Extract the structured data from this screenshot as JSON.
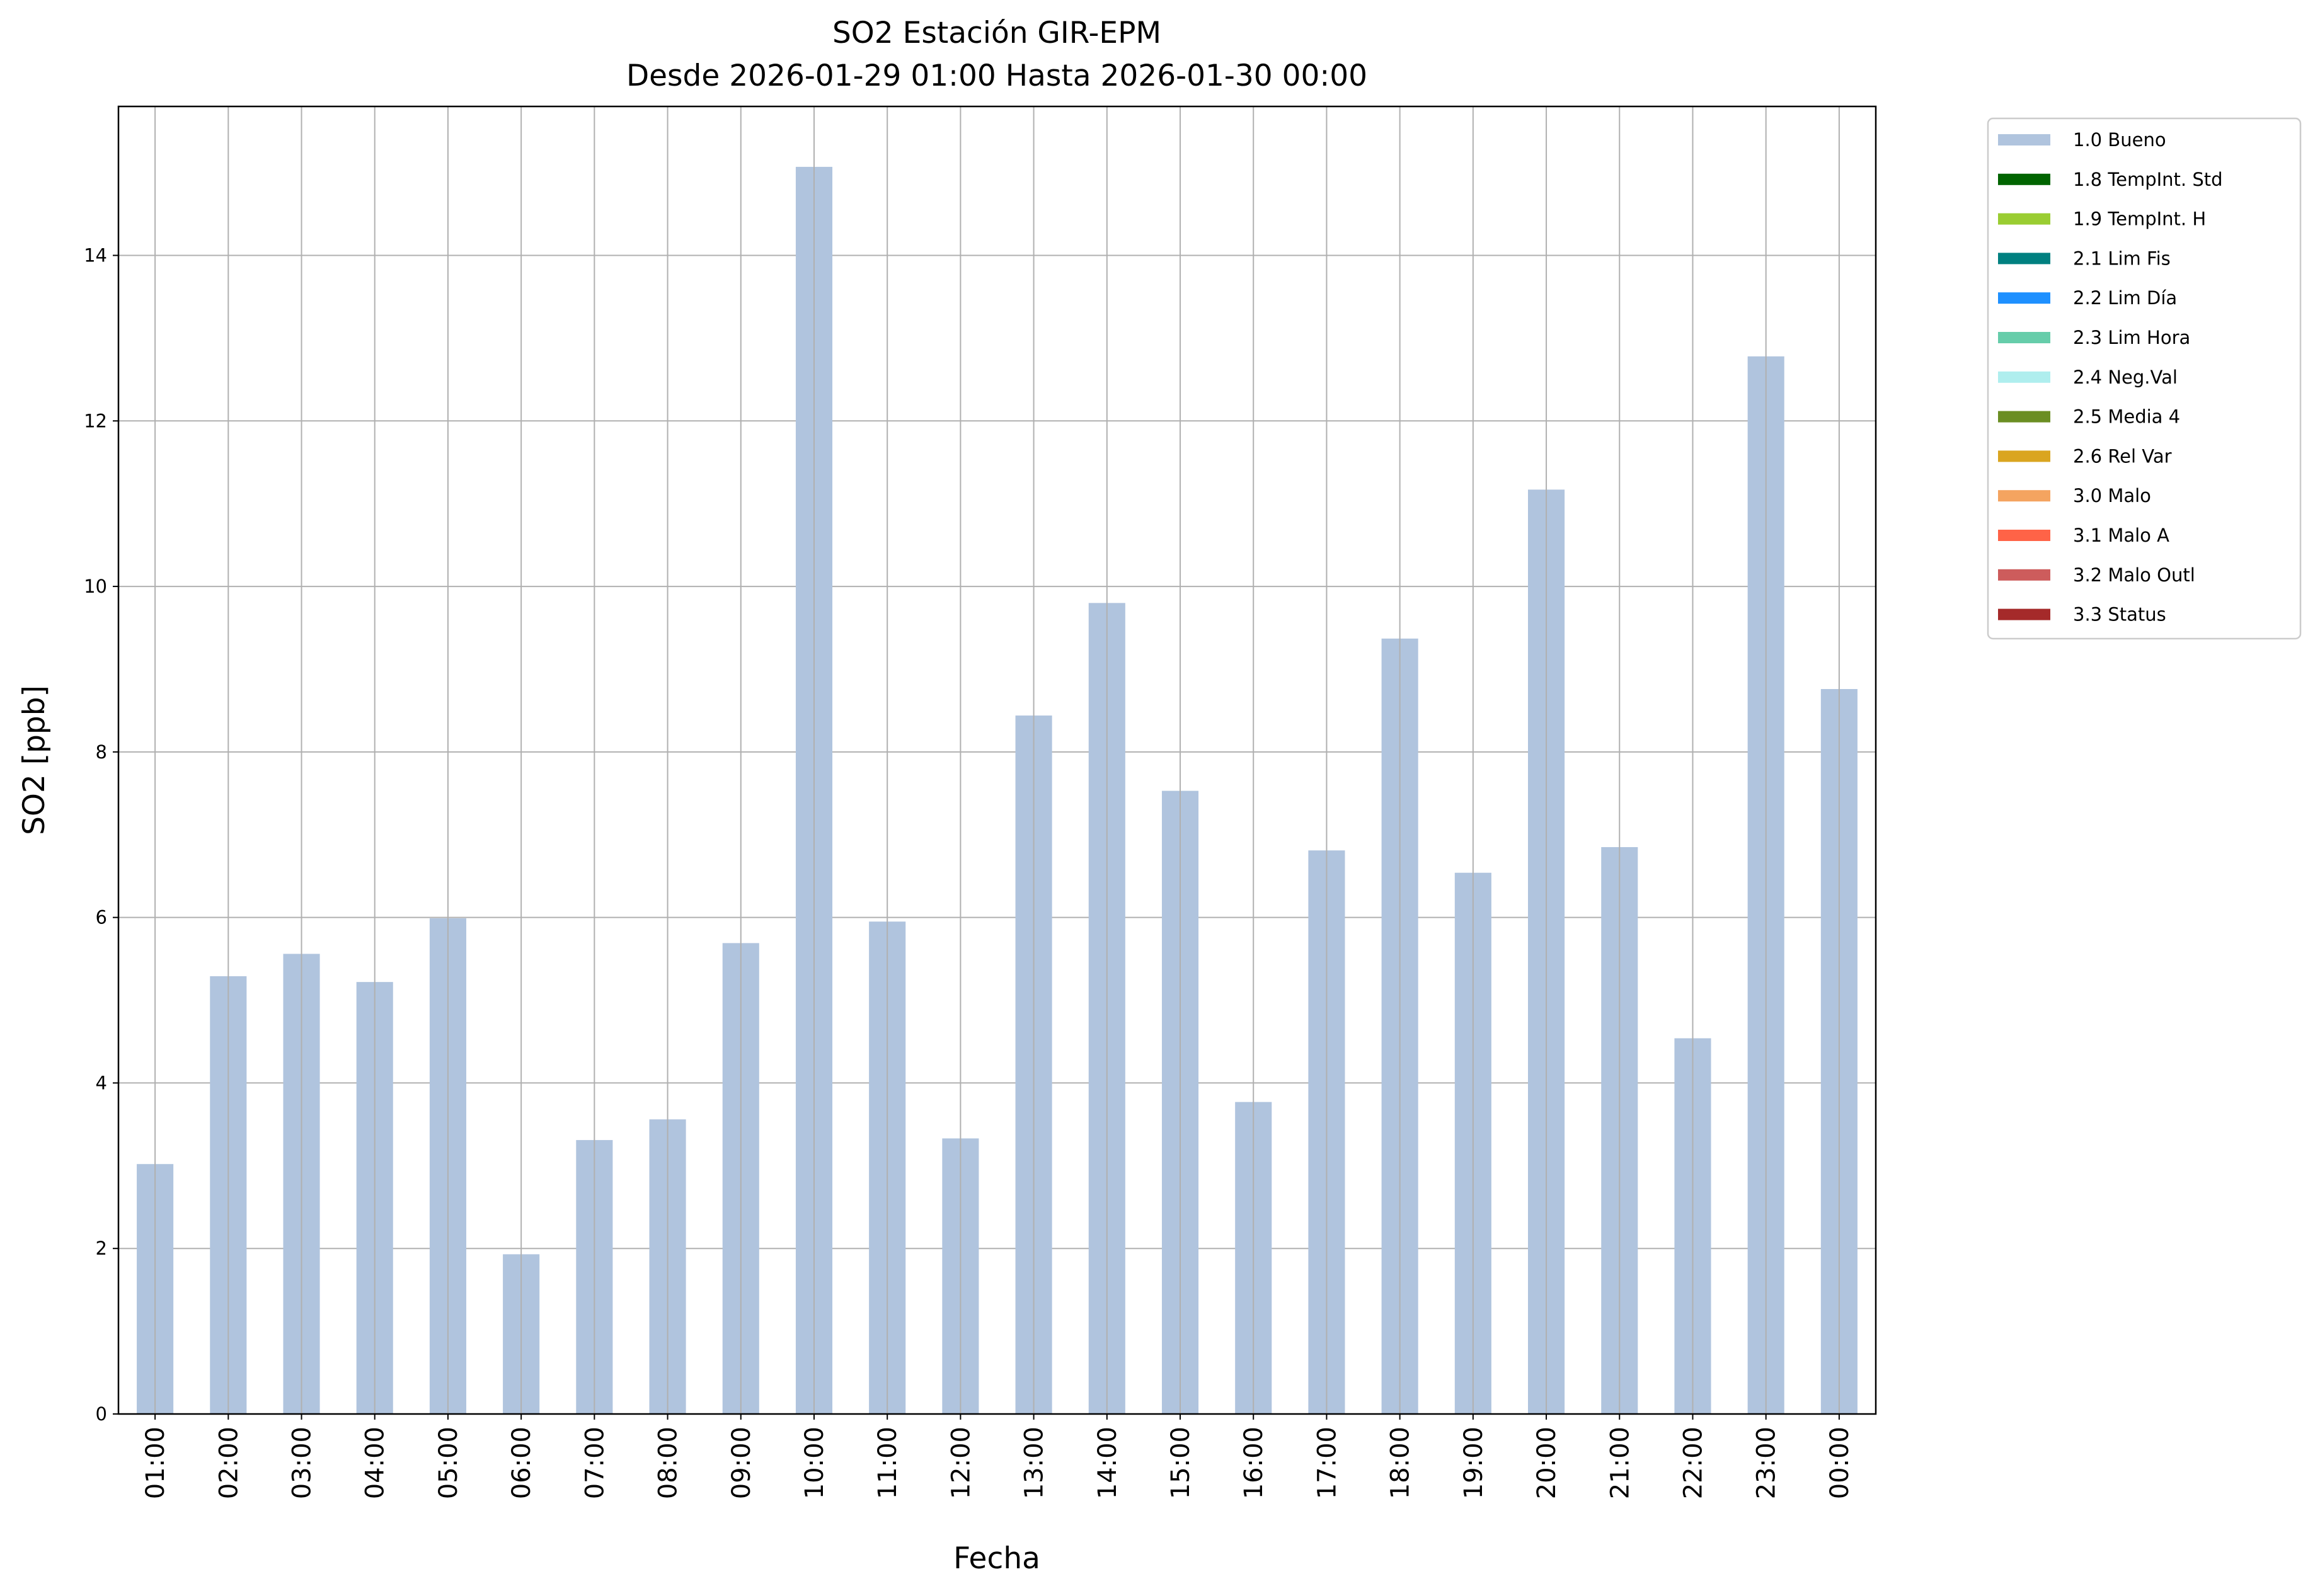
{
  "chart_data": {
    "type": "bar",
    "title": "SO2 Estación GIR-EPM",
    "subtitle": "Desde 2026-01-29 01:00 Hasta 2026-01-30 00:00",
    "xlabel": "Fecha",
    "ylabel": "SO2 [ppb]",
    "ylim": [
      0,
      15.8
    ],
    "yticks": [
      0,
      2,
      4,
      6,
      8,
      10,
      12,
      14
    ],
    "grid": true,
    "legend_placement": "outside-top-right",
    "categories": [
      "01:00",
      "02:00",
      "03:00",
      "04:00",
      "05:00",
      "06:00",
      "07:00",
      "08:00",
      "09:00",
      "10:00",
      "11:00",
      "12:00",
      "13:00",
      "14:00",
      "15:00",
      "16:00",
      "17:00",
      "18:00",
      "19:00",
      "20:00",
      "21:00",
      "22:00",
      "23:00",
      "00:00"
    ],
    "series": [
      {
        "name": "1.0 Bueno",
        "color": "#b0c4de",
        "values": [
          3.02,
          5.29,
          5.56,
          5.22,
          5.99,
          1.93,
          3.31,
          3.56,
          5.69,
          15.07,
          5.95,
          3.33,
          8.44,
          9.8,
          7.53,
          3.77,
          6.81,
          9.37,
          6.54,
          11.17,
          6.85,
          4.54,
          12.78,
          8.76
        ]
      }
    ],
    "legend": [
      {
        "label": "1.0 Bueno",
        "color": "#b0c4de"
      },
      {
        "label": "1.8 TempInt. Std",
        "color": "#006400"
      },
      {
        "label": "1.9 TempInt. H",
        "color": "#9acd32"
      },
      {
        "label": "2.1 Lim Fis",
        "color": "#008080"
      },
      {
        "label": "2.2 Lim Día",
        "color": "#1e90ff"
      },
      {
        "label": "2.3 Lim Hora",
        "color": "#66cdaa"
      },
      {
        "label": "2.4 Neg.Val",
        "color": "#afeeee"
      },
      {
        "label": "2.5 Media 4",
        "color": "#6b8e23"
      },
      {
        "label": "2.6 Rel Var",
        "color": "#daa520"
      },
      {
        "label": "3.0 Malo",
        "color": "#f4a460"
      },
      {
        "label": "3.1 Malo A",
        "color": "#ff6347"
      },
      {
        "label": "3.2 Malo Outl",
        "color": "#cd5c5c"
      },
      {
        "label": "3.3 Status",
        "color": "#a52a2a"
      }
    ]
  }
}
